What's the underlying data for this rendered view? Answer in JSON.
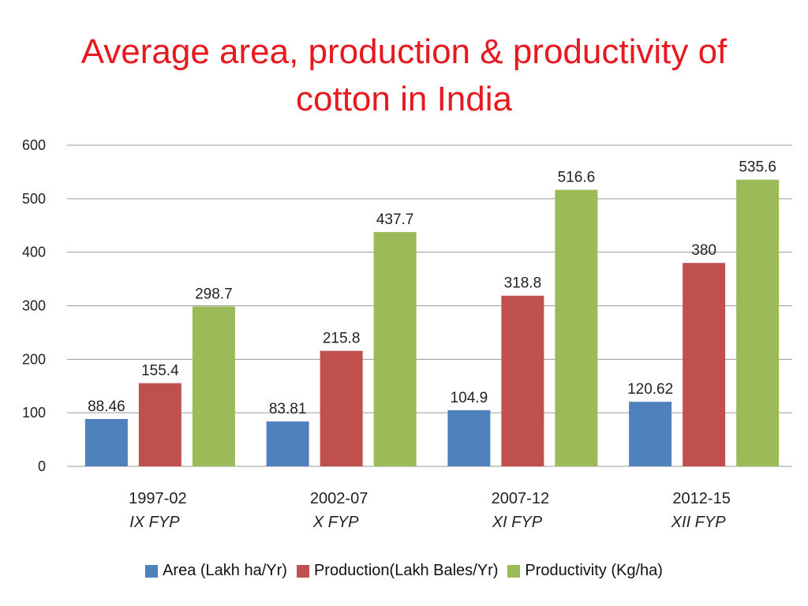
{
  "chart_data": {
    "type": "bar",
    "title_lines": [
      "Average area, production & productivity of",
      "cotton in India"
    ],
    "categories": [
      "1997-02",
      "2002-07",
      "2007-12",
      "2012-15"
    ],
    "category_sublabels": [
      "IX FYP",
      "X FYP",
      "XI FYP",
      "XII FYP"
    ],
    "series": [
      {
        "name": "Area (Lakh ha/Yr)",
        "color": "#4f81bd",
        "values": [
          88.46,
          83.81,
          104.9,
          120.62
        ],
        "labels": [
          "88.46",
          "83.81",
          "104.9",
          "120.62"
        ]
      },
      {
        "name": "Production(Lakh Bales/Yr)",
        "color": "#c0504d",
        "values": [
          155.4,
          215.8,
          318.8,
          380
        ],
        "labels": [
          "155.4",
          "215.8",
          "318.8",
          "380"
        ]
      },
      {
        "name": "Productivity (Kg/ha)",
        "color": "#9bbb59",
        "values": [
          298.7,
          437.7,
          516.6,
          535.6
        ],
        "labels": [
          "298.7",
          "437.7",
          "516.6",
          "535.6"
        ]
      }
    ],
    "ylim": [
      0,
      600
    ],
    "yticks": [
      0,
      100,
      200,
      300,
      400,
      500,
      600
    ],
    "grid": true,
    "legend_position": "bottom"
  }
}
